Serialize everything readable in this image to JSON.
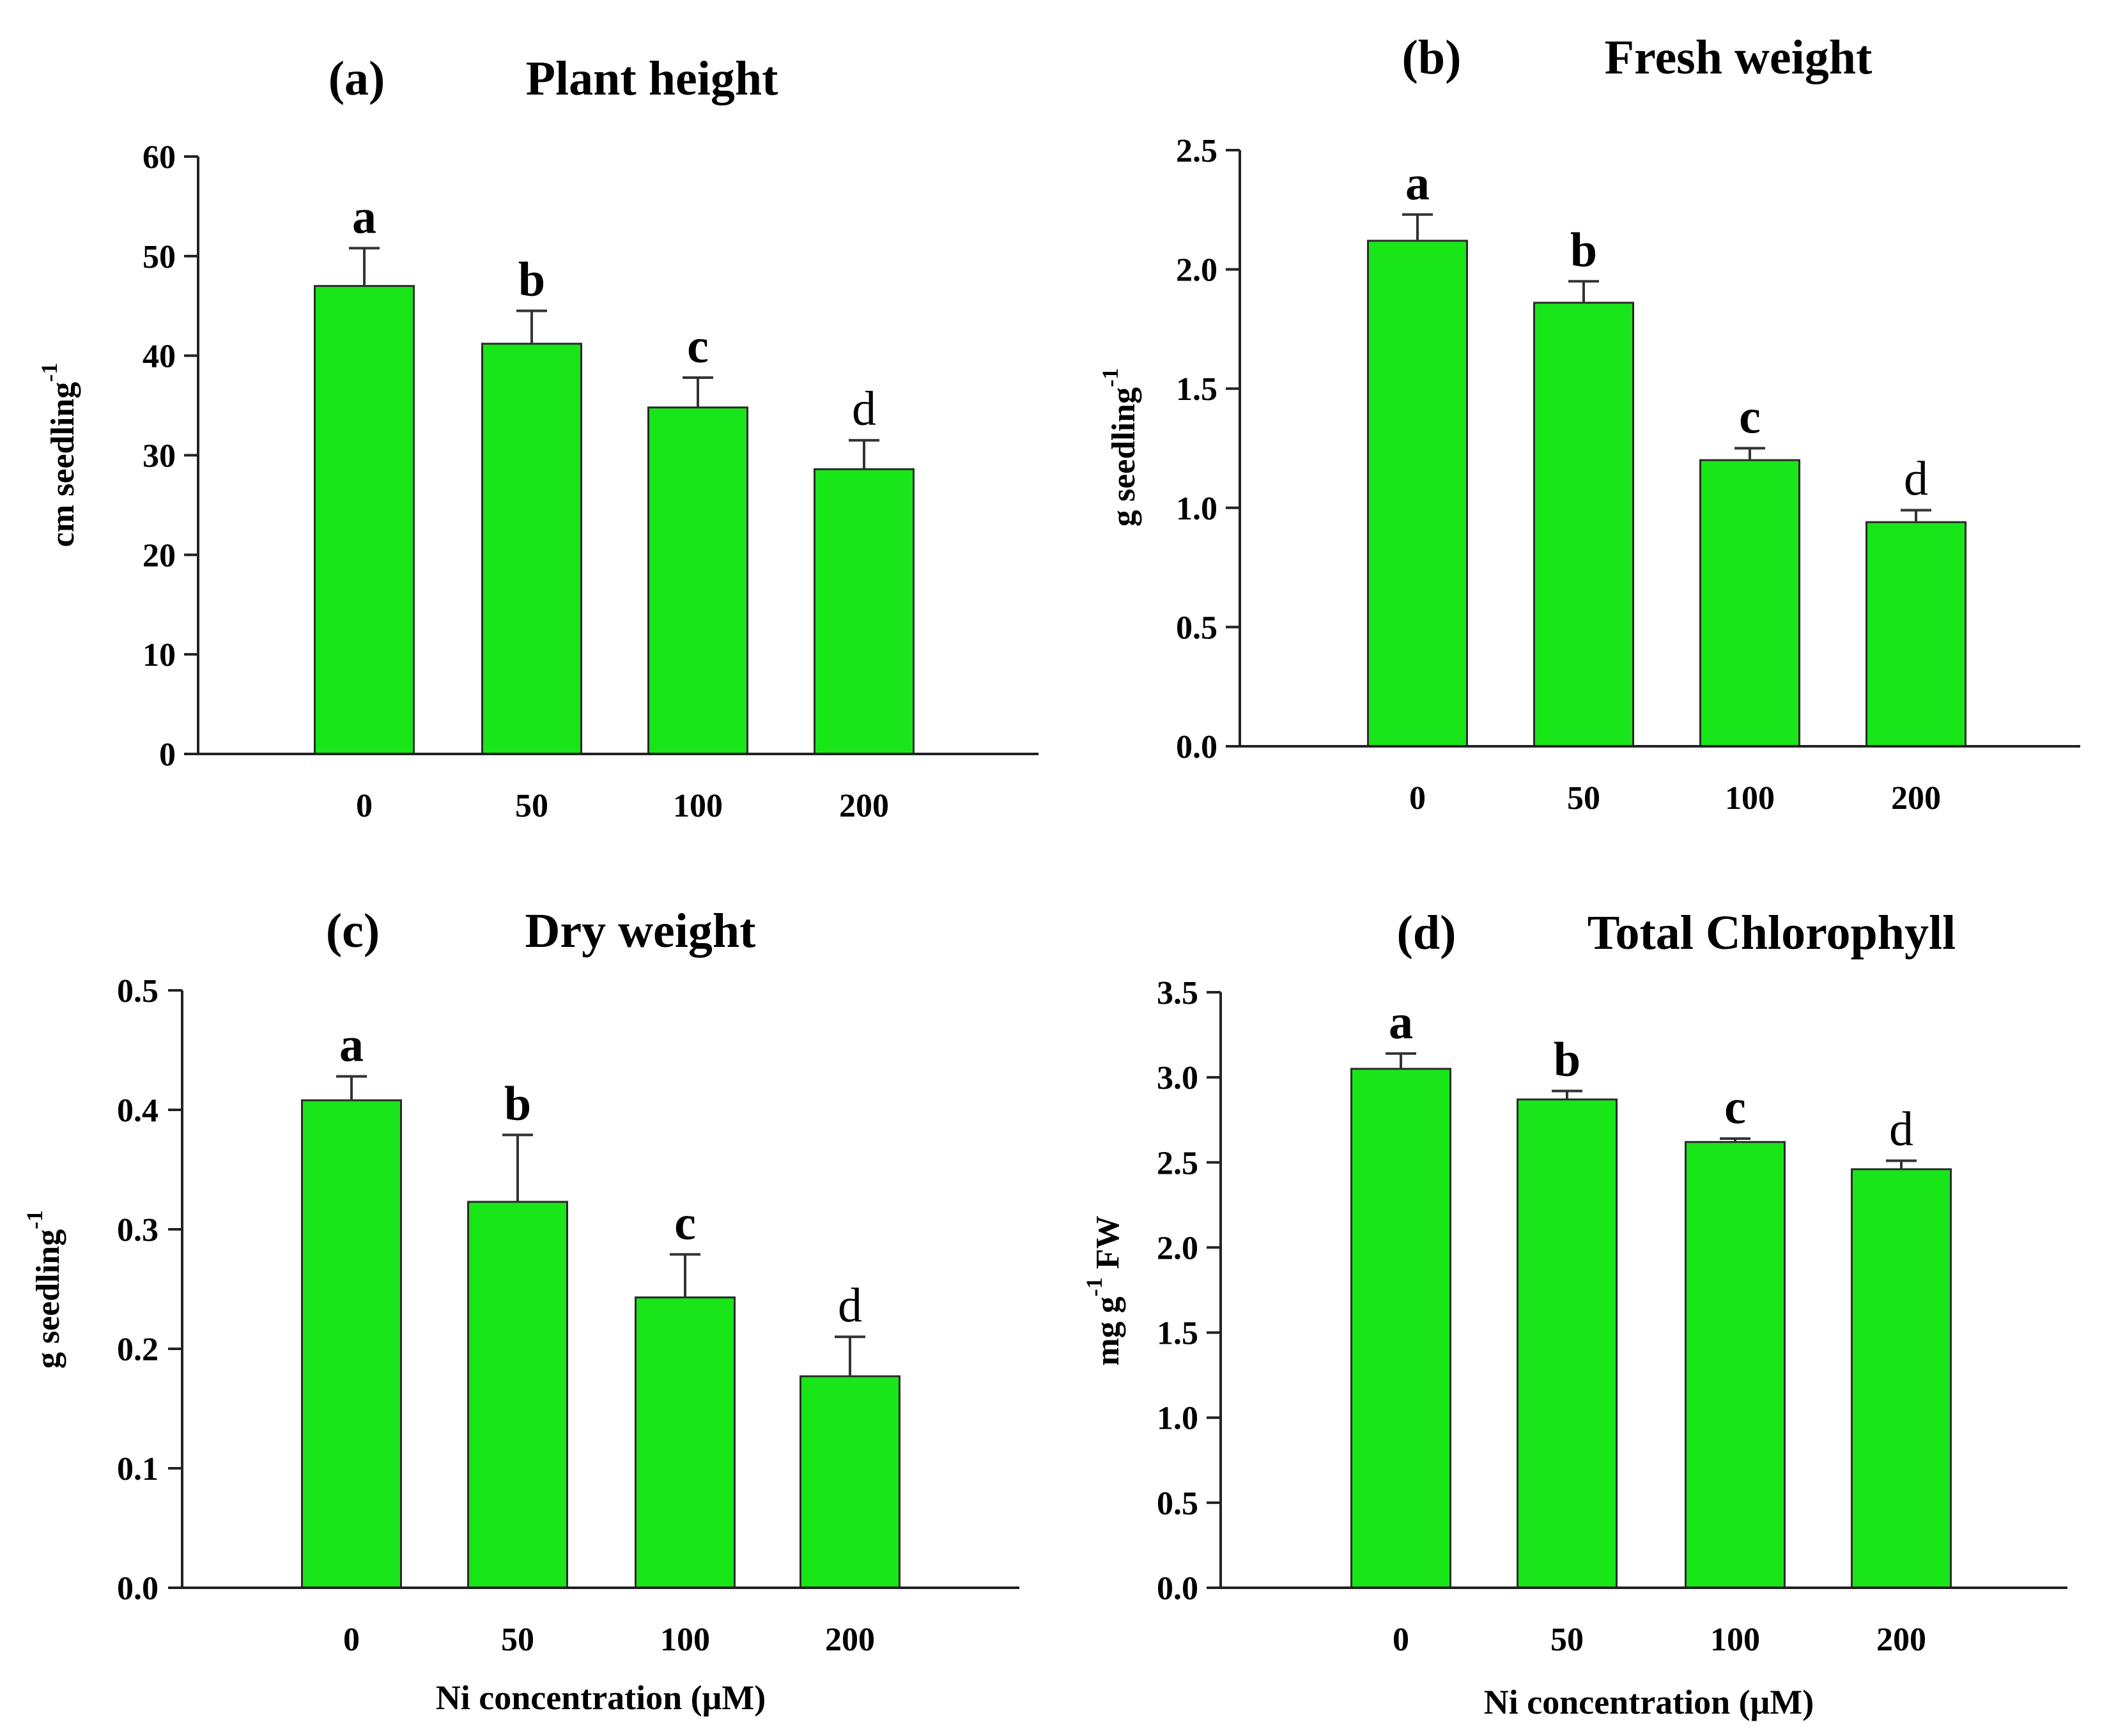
{
  "chart_data": [
    {
      "type": "bar",
      "panel_letter": "(a)",
      "title": "Plant height",
      "ylabel_main": "cm seedling",
      "ylabel_sup": "-1",
      "ylabel_tail": "",
      "xlabel": "",
      "categories": [
        "0",
        "50",
        "100",
        "200"
      ],
      "values": [
        47.0,
        41.2,
        34.8,
        28.6
      ],
      "errors": [
        3.8,
        3.3,
        3.0,
        2.9
      ],
      "significance": [
        "a",
        "b",
        "c",
        "d"
      ],
      "significance_bold": [
        true,
        true,
        true,
        false
      ],
      "ylim": [
        0,
        60
      ],
      "yticks": [
        0,
        10,
        20,
        30,
        40,
        50,
        60
      ],
      "ytick_labels": [
        "0",
        "10",
        "20",
        "30",
        "40",
        "50",
        "60"
      ],
      "bar_color": "#19e619"
    },
    {
      "type": "bar",
      "panel_letter": "(b)",
      "title": "Fresh weight",
      "ylabel_main": "g seedling",
      "ylabel_sup": "-1",
      "ylabel_tail": "",
      "xlabel": "",
      "categories": [
        "0",
        "50",
        "100",
        "200"
      ],
      "values": [
        2.12,
        1.86,
        1.2,
        0.94
      ],
      "errors": [
        0.11,
        0.09,
        0.05,
        0.05
      ],
      "significance": [
        "a",
        "b",
        "c",
        "d"
      ],
      "significance_bold": [
        true,
        true,
        true,
        false
      ],
      "ylim": [
        0,
        2.5
      ],
      "yticks": [
        0,
        0.5,
        1.0,
        1.5,
        2.0,
        2.5
      ],
      "ytick_labels": [
        "0.0",
        "0.5",
        "1.0",
        "1.5",
        "2.0",
        "2.5"
      ],
      "bar_color": "#19e619"
    },
    {
      "type": "bar",
      "panel_letter": "(c)",
      "title": "Dry weight",
      "ylabel_main": "g seedling",
      "ylabel_sup": "-1",
      "ylabel_tail": "",
      "xlabel": "Ni concentration (μM)",
      "categories": [
        "0",
        "50",
        "100",
        "200"
      ],
      "values": [
        0.408,
        0.323,
        0.243,
        0.177
      ],
      "errors": [
        0.02,
        0.056,
        0.036,
        0.033
      ],
      "significance": [
        "a",
        "b",
        "c",
        "d"
      ],
      "significance_bold": [
        true,
        true,
        true,
        false
      ],
      "ylim": [
        0,
        0.5
      ],
      "yticks": [
        0,
        0.1,
        0.2,
        0.3,
        0.4,
        0.5
      ],
      "ytick_labels": [
        "0.0",
        "0.1",
        "0.2",
        "0.3",
        "0.4",
        "0.5"
      ],
      "bar_color": "#19e619"
    },
    {
      "type": "bar",
      "panel_letter": "(d)",
      "title": "Total Chlorophyll",
      "ylabel_main": "mg g",
      "ylabel_sup": "-1",
      "ylabel_tail": " FW",
      "xlabel": "Ni concentration (μM)",
      "categories": [
        "0",
        "50",
        "100",
        "200"
      ],
      "values": [
        3.05,
        2.87,
        2.62,
        2.46
      ],
      "errors": [
        0.09,
        0.05,
        0.02,
        0.05
      ],
      "significance": [
        "a",
        "b",
        "c",
        "d"
      ],
      "significance_bold": [
        true,
        true,
        true,
        false
      ],
      "ylim": [
        0,
        3.5
      ],
      "yticks": [
        0,
        0.5,
        1.0,
        1.5,
        2.0,
        2.5,
        3.0,
        3.5
      ],
      "ytick_labels": [
        "0.0",
        "0.5",
        "1.0",
        "1.5",
        "2.0",
        "2.5",
        "3.0",
        "3.5"
      ],
      "bar_color": "#19e619"
    }
  ]
}
